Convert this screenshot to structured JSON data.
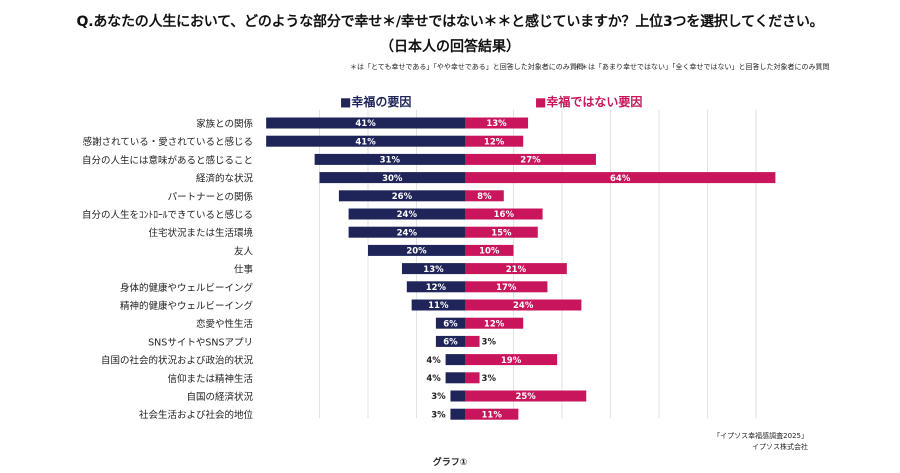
{
  "header": {
    "title": "Q.あなたの人生において、どのような部分で幸せ＊/幸せではない＊＊と感じていますか？上位3つを選択してください。",
    "subtitle": "（日本人の回答結果）",
    "note_positive": "＊は「とても幸せである」「やや幸せである」と回答した対象者にのみ質問",
    "note_negative": "＊＊は「あまり幸せではない」「全く幸せではない」と回答した対象者にのみ質問"
  },
  "legend": {
    "positive": "■幸福の要因",
    "negative": "■幸福ではない要因"
  },
  "footer": {
    "source_line1": "「イプソス幸福感調査2025」",
    "source_line2": "イプソス株式会社",
    "caption": "グラフ①"
  },
  "colors": {
    "positive": "#1f2558",
    "negative": "#c8155c",
    "grid": "#e2e2e2"
  },
  "chart_data": {
    "type": "bar",
    "orientation": "horizontal-diverging",
    "categories": [
      "家族との関係",
      "感謝されている・愛されていると感じる",
      "自分の人生には意味があると感じること",
      "経済的な状況",
      "パートナーとの関係",
      "自分の人生をｺﾝﾄﾛｰﾙできていると感じる",
      "住宅状況または生活環境",
      "友人",
      "仕事",
      "身体的健康やウェルビーイング",
      "精神的健康やウェルビーイング",
      "恋愛や性生活",
      "SNSサイトやSNSアプリ",
      "自国の社会的状況および政治的状況",
      "信仰または精神生活",
      "自国の経済状況",
      "社会生活および社会的地位"
    ],
    "series": [
      {
        "name": "幸福の要因",
        "direction": "left",
        "values": [
          41,
          41,
          31,
          30,
          26,
          24,
          24,
          20,
          13,
          12,
          11,
          6,
          6,
          4,
          4,
          3,
          3
        ],
        "labels": [
          "41%",
          "41%",
          "31%",
          "30%",
          "26%",
          "24%",
          "24%",
          "20%",
          "13%",
          "12%",
          "11%",
          "6%",
          "6%",
          "4%",
          "4%",
          "3%",
          "3%"
        ]
      },
      {
        "name": "幸福ではない要因",
        "direction": "right",
        "values": [
          13,
          12,
          27,
          64,
          8,
          16,
          15,
          10,
          21,
          17,
          24,
          12,
          3,
          19,
          3,
          25,
          11
        ],
        "labels": [
          "13%",
          "12%",
          "27%",
          "64%",
          "8%",
          "16%",
          "15%",
          "10%",
          "21%",
          "17%",
          "24%",
          "12%",
          "3%",
          "19%",
          "3%",
          "25%",
          "11%"
        ]
      }
    ],
    "unit": "%",
    "grid": true,
    "legend_position": "top"
  }
}
